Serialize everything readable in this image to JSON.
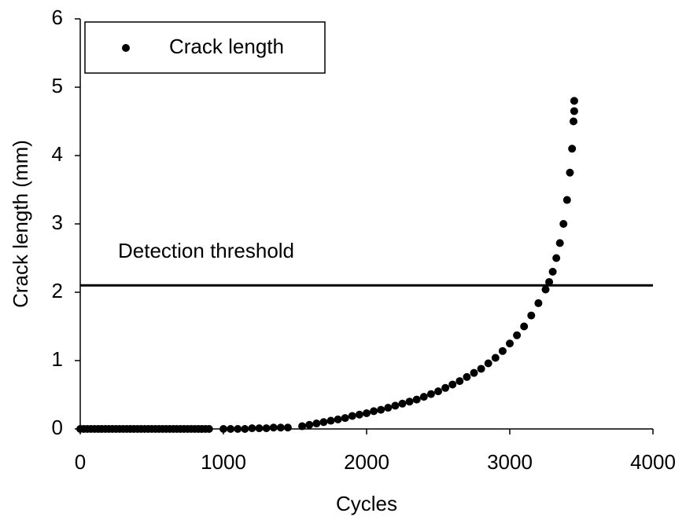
{
  "chart_data": {
    "type": "scatter",
    "xlabel": "Cycles",
    "ylabel": "Crack length (mm)",
    "series": [
      {
        "name": "Crack length",
        "color": "#000000",
        "x": [
          0,
          25,
          50,
          75,
          100,
          125,
          150,
          175,
          200,
          225,
          250,
          275,
          300,
          325,
          350,
          375,
          400,
          425,
          450,
          475,
          500,
          525,
          550,
          575,
          600,
          625,
          650,
          675,
          700,
          725,
          750,
          775,
          800,
          825,
          850,
          875,
          900,
          1000,
          1050,
          1100,
          1150,
          1200,
          1250,
          1300,
          1350,
          1400,
          1450,
          1550,
          1600,
          1650,
          1700,
          1750,
          1800,
          1850,
          1900,
          1950,
          2000,
          2050,
          2100,
          2150,
          2200,
          2250,
          2300,
          2350,
          2400,
          2450,
          2500,
          2550,
          2600,
          2650,
          2700,
          2750,
          2800,
          2850,
          2900,
          2950,
          3000,
          3050,
          3100,
          3150,
          3200,
          3250,
          3275,
          3300,
          3325,
          3350,
          3375,
          3400,
          3420,
          3435,
          3445,
          3450,
          3450
        ],
        "values": [
          0,
          0,
          0,
          0,
          0,
          0,
          0,
          0,
          0,
          0,
          0,
          0,
          0,
          0,
          0,
          0,
          0,
          0,
          0,
          0,
          0,
          0,
          0,
          0,
          0,
          0,
          0,
          0,
          0,
          0,
          0,
          0,
          0,
          0,
          0,
          0,
          0,
          0,
          0,
          0,
          0,
          0.01,
          0.01,
          0.01,
          0.02,
          0.02,
          0.02,
          0.04,
          0.06,
          0.08,
          0.1,
          0.12,
          0.14,
          0.16,
          0.19,
          0.21,
          0.23,
          0.26,
          0.28,
          0.31,
          0.34,
          0.37,
          0.4,
          0.43,
          0.47,
          0.51,
          0.55,
          0.6,
          0.65,
          0.7,
          0.76,
          0.82,
          0.88,
          0.96,
          1.04,
          1.14,
          1.25,
          1.37,
          1.5,
          1.66,
          1.84,
          2.04,
          2.15,
          2.3,
          2.5,
          2.72,
          3.0,
          3.35,
          3.75,
          4.1,
          4.5,
          4.65,
          4.8
        ]
      }
    ],
    "threshold": {
      "label": "Detection threshold",
      "value": 2.1
    },
    "xlim": [
      0,
      4000
    ],
    "xticks": [
      0,
      1000,
      2000,
      3000,
      4000
    ],
    "ylim": [
      0,
      6
    ],
    "yticks": [
      0,
      1,
      2,
      3,
      4,
      5,
      6
    ],
    "legend": "upper left"
  }
}
